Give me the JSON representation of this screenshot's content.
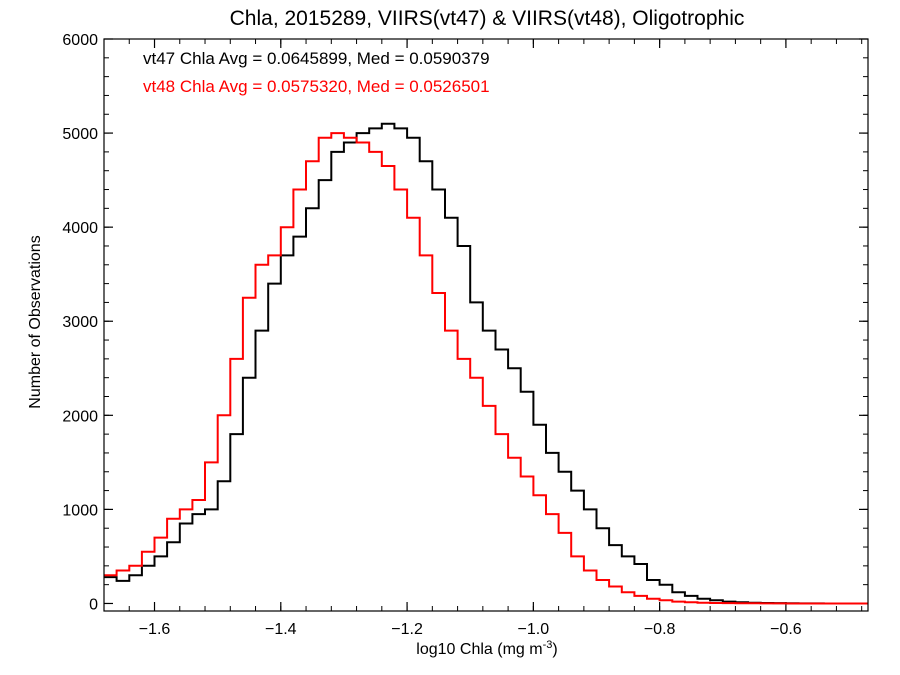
{
  "chart_data": {
    "type": "line",
    "title": "Chla, 2015289, VIIRS(vt47) & VIIRS(vt48), Oligotrophic",
    "xlabel_main": "log10 Chla (mg m",
    "xlabel_sup": "-3",
    "xlabel_close": ")",
    "ylabel": "Number of Observations",
    "xlim": [
      -1.68,
      -0.47
    ],
    "ylim": [
      -80,
      6000
    ],
    "x_ticks": [
      -1.6,
      -1.4,
      -1.2,
      -1.0,
      -0.8,
      -0.6
    ],
    "x_tick_labels": [
      "−1.6",
      "−1.4",
      "−1.2",
      "−1.0",
      "−0.8",
      "−0.6"
    ],
    "y_ticks": [
      0,
      1000,
      2000,
      3000,
      4000,
      5000,
      6000
    ],
    "y_tick_labels": [
      "0",
      "1000",
      "2000",
      "3000",
      "4000",
      "5000",
      "6000"
    ],
    "x_minor_step": 0.04,
    "y_minor_step": 200,
    "annotations": [
      "vt47 Chla Avg = 0.0645899, Med = 0.0590379",
      "vt48 Chla Avg = 0.0575320, Med = 0.0526501"
    ],
    "series": [
      {
        "color": "#000000",
        "step": true,
        "x": [
          -1.68,
          -1.66,
          -1.64,
          -1.62,
          -1.6,
          -1.58,
          -1.56,
          -1.54,
          -1.52,
          -1.5,
          -1.48,
          -1.46,
          -1.44,
          -1.42,
          -1.4,
          -1.38,
          -1.36,
          -1.34,
          -1.32,
          -1.3,
          -1.28,
          -1.26,
          -1.24,
          -1.22,
          -1.2,
          -1.18,
          -1.16,
          -1.14,
          -1.12,
          -1.1,
          -1.08,
          -1.06,
          -1.04,
          -1.02,
          -1.0,
          -0.98,
          -0.96,
          -0.94,
          -0.92,
          -0.9,
          -0.88,
          -0.86,
          -0.84,
          -0.82,
          -0.8,
          -0.78,
          -0.76,
          -0.74,
          -0.72,
          -0.7,
          -0.68,
          -0.66,
          -0.64,
          -0.62,
          -0.6,
          -0.58,
          -0.56,
          -0.54,
          -0.52,
          -0.5,
          -0.48,
          -0.47
        ],
        "y": [
          280,
          240,
          300,
          400,
          500,
          650,
          850,
          950,
          1000,
          1300,
          1800,
          2400,
          2900,
          3400,
          3700,
          3900,
          4200,
          4500,
          4800,
          4900,
          5000,
          5050,
          5100,
          5050,
          4950,
          4700,
          4400,
          4100,
          3800,
          3200,
          2900,
          2700,
          2500,
          2250,
          1900,
          1600,
          1400,
          1200,
          1000,
          800,
          620,
          500,
          420,
          250,
          200,
          120,
          80,
          50,
          35,
          20,
          12,
          8,
          5,
          4,
          2,
          1,
          1,
          0,
          0,
          0,
          0,
          0
        ]
      },
      {
        "color": "#ff0000",
        "step": true,
        "x": [
          -1.68,
          -1.66,
          -1.64,
          -1.62,
          -1.6,
          -1.58,
          -1.56,
          -1.54,
          -1.52,
          -1.5,
          -1.48,
          -1.46,
          -1.44,
          -1.42,
          -1.4,
          -1.38,
          -1.36,
          -1.34,
          -1.32,
          -1.3,
          -1.28,
          -1.26,
          -1.24,
          -1.22,
          -1.2,
          -1.18,
          -1.16,
          -1.14,
          -1.12,
          -1.1,
          -1.08,
          -1.06,
          -1.04,
          -1.02,
          -1.0,
          -0.98,
          -0.96,
          -0.94,
          -0.92,
          -0.9,
          -0.88,
          -0.86,
          -0.84,
          -0.82,
          -0.8,
          -0.78,
          -0.76,
          -0.74,
          -0.72,
          -0.7,
          -0.68,
          -0.66,
          -0.64,
          -0.62,
          -0.6,
          -0.58,
          -0.56,
          -0.54,
          -0.52,
          -0.5,
          -0.48,
          -0.47
        ],
        "y": [
          300,
          350,
          400,
          550,
          700,
          900,
          1000,
          1100,
          1500,
          2000,
          2600,
          3250,
          3600,
          3700,
          4000,
          4400,
          4700,
          4950,
          5000,
          4950,
          4900,
          4800,
          4650,
          4400,
          4100,
          3700,
          3300,
          2900,
          2600,
          2400,
          2100,
          1800,
          1550,
          1350,
          1150,
          950,
          750,
          500,
          350,
          250,
          180,
          120,
          80,
          50,
          35,
          20,
          12,
          8,
          5,
          4,
          3,
          2,
          1,
          1,
          0,
          0,
          0,
          0,
          0,
          0,
          0,
          0
        ]
      }
    ],
    "grid": false,
    "legend": "none"
  },
  "colors": {
    "vt47": "#000000",
    "vt48": "#ff0000",
    "axes": "#000000",
    "background": "#ffffff"
  }
}
